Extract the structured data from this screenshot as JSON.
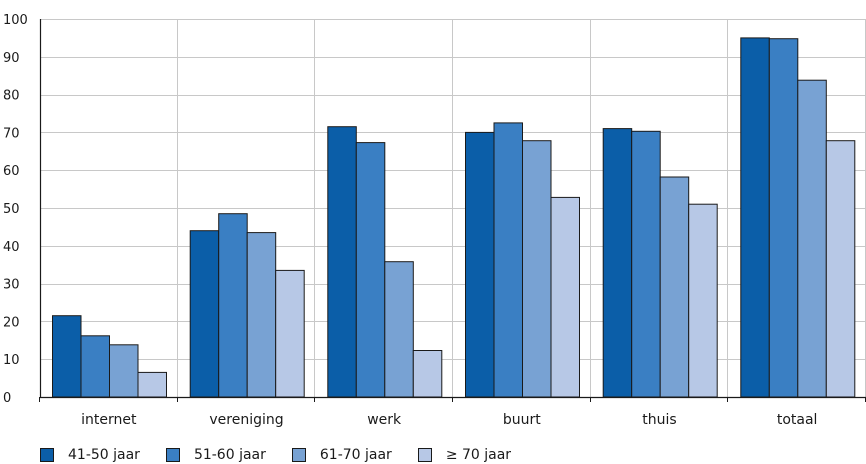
{
  "chart_data": {
    "type": "bar",
    "title": "",
    "xlabel": "",
    "ylabel": "",
    "ylim": [
      0,
      100
    ],
    "yticks": [
      0,
      10,
      20,
      30,
      40,
      50,
      60,
      70,
      80,
      90,
      100
    ],
    "grid": true,
    "legend_position": "bottom-left",
    "categories": [
      "internet",
      "vereniging",
      "werk",
      "buurt",
      "thuis",
      "totaal"
    ],
    "series": [
      {
        "name": "41-50 jaar",
        "color": "#0b5ea8",
        "values": [
          21.5,
          44,
          71.5,
          70,
          71,
          95
        ]
      },
      {
        "name": "51-60 jaar",
        "color": "#3a7fc3",
        "values": [
          16.2,
          48.5,
          67.3,
          72.5,
          70.3,
          94.8
        ]
      },
      {
        "name": "61-70 jaar",
        "color": "#78a2d3",
        "values": [
          13.8,
          43.5,
          35.8,
          67.8,
          58.2,
          83.8
        ]
      },
      {
        "name": "≥ 70 jaar",
        "color": "#b7c8e6",
        "values": [
          6.5,
          33.5,
          12.3,
          52.8,
          51,
          67.8
        ]
      }
    ]
  }
}
